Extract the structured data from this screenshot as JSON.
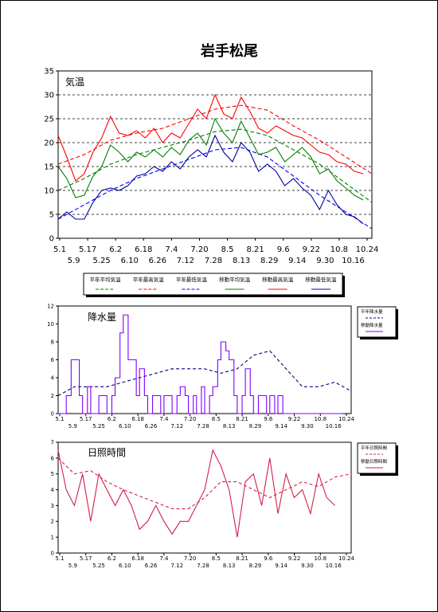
{
  "page_title": "岩手松尾",
  "colors": {
    "normal_mean": "#008000",
    "normal_max": "#ff0000",
    "normal_min": "#0000ff",
    "mov_mean": "#008000",
    "mov_max": "#ff0000",
    "mov_min": "#0000a0",
    "precip": "#8000ff",
    "precip_normal": "#000080",
    "sun": "#d0204a"
  },
  "chart_data": [
    {
      "type": "line",
      "title": "気温",
      "ylim": [
        0,
        35
      ],
      "yticks": [
        "0",
        "5",
        "10",
        "15",
        "20",
        "25",
        "30",
        "35"
      ],
      "xlabels_top": [
        "5.1",
        "5.17",
        "6.2",
        "6.18",
        "7.4",
        "7.20",
        "8.5",
        "8.21",
        "9.6",
        "9.22",
        "10.8",
        "10.24"
      ],
      "xlabels_bottom": [
        "5.9",
        "5.25",
        "6.10",
        "6.26",
        "7.12",
        "7.28",
        "8.13",
        "8.29",
        "9.14",
        "9.30",
        "10.16"
      ],
      "grid": "horizontal dashed",
      "legend_position": "below",
      "x_days": [
        0,
        180
      ],
      "series": [
        {
          "name": "平年平均気温",
          "style": "dashed",
          "color_key": "normal_mean",
          "x": [
            0,
            15,
            30,
            45,
            60,
            75,
            90,
            105,
            120,
            135,
            150,
            165,
            180
          ],
          "y": [
            10.0,
            12.5,
            15.5,
            17.5,
            19.0,
            20.5,
            22.3,
            22.8,
            21.5,
            18.5,
            15.5,
            11.5,
            7.5
          ]
        },
        {
          "name": "平年最高気温",
          "style": "dashed",
          "color_key": "normal_max",
          "x": [
            0,
            15,
            30,
            45,
            60,
            75,
            90,
            105,
            120,
            135,
            150,
            165,
            180
          ],
          "y": [
            15.5,
            17.5,
            20.5,
            22.0,
            23.0,
            25.0,
            27.0,
            27.8,
            26.8,
            23.5,
            20.5,
            17.0,
            13.5
          ]
        },
        {
          "name": "平年最低気温",
          "style": "dashed",
          "color_key": "normal_min",
          "x": [
            0,
            15,
            30,
            45,
            60,
            75,
            90,
            105,
            120,
            135,
            150,
            165,
            180
          ],
          "y": [
            4.0,
            7.0,
            10.0,
            12.5,
            14.5,
            16.5,
            18.5,
            19.0,
            17.0,
            13.0,
            9.0,
            5.5,
            2.0
          ]
        },
        {
          "name": "移動平均気温",
          "style": "solid",
          "color_key": "mov_mean",
          "x": [
            0,
            5,
            10,
            15,
            20,
            25,
            30,
            35,
            40,
            45,
            50,
            55,
            60,
            65,
            70,
            75,
            80,
            85,
            90,
            95,
            100,
            105,
            110,
            115,
            120,
            125,
            130,
            135,
            140,
            145,
            150,
            155,
            160,
            165,
            170,
            175
          ],
          "y": [
            15,
            12.5,
            8.5,
            9,
            13,
            15,
            19.5,
            18,
            16,
            18,
            17,
            18.5,
            17,
            19,
            17.5,
            20.5,
            22,
            19.5,
            25,
            22,
            20,
            24.5,
            21,
            17.5,
            18,
            19,
            16,
            17.5,
            19,
            17,
            13.5,
            14.5,
            12,
            10.5,
            9,
            8
          ]
        },
        {
          "name": "移動最高気温",
          "style": "solid",
          "color_key": "mov_max",
          "x": [
            0,
            5,
            10,
            15,
            20,
            25,
            30,
            35,
            40,
            45,
            50,
            55,
            60,
            65,
            70,
            75,
            80,
            85,
            90,
            95,
            100,
            105,
            110,
            115,
            120,
            125,
            130,
            135,
            140,
            145,
            150,
            155,
            160,
            165,
            170,
            175
          ],
          "y": [
            21.5,
            17,
            12,
            13.5,
            18,
            21,
            25.5,
            22,
            21.5,
            22.5,
            21,
            23,
            20,
            22,
            21,
            24,
            27,
            25,
            30,
            26,
            25,
            29.5,
            26.5,
            23,
            22,
            23.5,
            22.5,
            21.5,
            21,
            19.5,
            18,
            17.5,
            16,
            15.5,
            14,
            13.5
          ]
        },
        {
          "name": "移動最低気温",
          "style": "solid",
          "color_key": "mov_min",
          "x": [
            0,
            5,
            10,
            15,
            20,
            25,
            30,
            35,
            40,
            45,
            50,
            55,
            60,
            65,
            70,
            75,
            80,
            85,
            90,
            95,
            100,
            105,
            110,
            115,
            120,
            125,
            130,
            135,
            140,
            145,
            150,
            155,
            160,
            165,
            170,
            175
          ],
          "y": [
            4,
            5.5,
            4,
            4,
            7.5,
            10,
            10.5,
            10,
            11,
            13,
            13.5,
            15,
            14,
            16,
            14.5,
            17,
            18.5,
            17,
            21.5,
            18,
            16,
            20,
            18,
            14,
            15.5,
            14,
            11,
            12.5,
            10.5,
            9,
            6,
            10,
            7,
            5,
            4.5,
            3
          ]
        }
      ]
    },
    {
      "type": "line",
      "title": "降水量",
      "ylim": [
        0,
        12
      ],
      "yticks": [
        "0",
        "2",
        "4",
        "6",
        "8",
        "10",
        "12"
      ],
      "xlabels_top": [
        "5.1",
        "5.17",
        "6.2",
        "6.18",
        "7.4",
        "7.20",
        "8.5",
        "8.21",
        "9.6",
        "9.22",
        "10.8",
        "10.24"
      ],
      "xlabels_bottom": [
        "5.9",
        "5.25",
        "6.10",
        "6.26",
        "7.12",
        "7.28",
        "8.13",
        "8.29",
        "9.14",
        "9.30",
        "10.16"
      ],
      "legend_position": "right",
      "x_days": [
        0,
        180
      ],
      "series": [
        {
          "name": "平年降水量",
          "style": "dashed",
          "color_key": "precip_normal",
          "x": [
            0,
            10,
            20,
            30,
            40,
            50,
            60,
            70,
            80,
            90,
            100,
            110,
            120,
            130,
            140,
            150,
            160,
            170,
            180
          ],
          "y": [
            2,
            3,
            3,
            3,
            3.5,
            4,
            4.5,
            5,
            5,
            5,
            4.5,
            5,
            6.5,
            7,
            5,
            3,
            3,
            3.5,
            2.5
          ]
        },
        {
          "name": "移動降水量",
          "style": "solid",
          "color_key": "precip",
          "x": [
            0,
            5,
            8,
            10,
            13,
            15,
            18,
            20,
            23,
            25,
            28,
            30,
            33,
            35,
            38,
            40,
            43,
            45,
            48,
            50,
            53,
            55,
            58,
            60,
            63,
            65,
            68,
            70,
            73,
            75,
            78,
            80,
            83,
            85,
            88,
            90,
            93,
            95,
            98,
            100,
            103,
            105,
            108,
            110,
            113,
            115,
            118,
            120,
            123,
            125,
            128,
            130,
            133,
            135,
            138,
            140,
            145,
            150,
            155,
            160,
            165,
            170,
            175
          ],
          "y": [
            0,
            2,
            6,
            6,
            2,
            0,
            3,
            0,
            0,
            2,
            2,
            0,
            2,
            4,
            9,
            11,
            6,
            6,
            2,
            5,
            2,
            0,
            2,
            2,
            0,
            2,
            2,
            0,
            2,
            3,
            2,
            0,
            2,
            0,
            3,
            0,
            2,
            3,
            6,
            8,
            7,
            6,
            2,
            0,
            2,
            5,
            2,
            0,
            2,
            2,
            0,
            2,
            0,
            2,
            0,
            0,
            0,
            0,
            0,
            0,
            0,
            0,
            0
          ]
        }
      ]
    },
    {
      "type": "line",
      "title": "日照時間",
      "ylim": [
        0,
        7
      ],
      "yticks": [
        "0",
        "1",
        "2",
        "3",
        "4",
        "5",
        "6",
        "7"
      ],
      "xlabels_top": [
        "5.1",
        "5.17",
        "6.2",
        "6.18",
        "7.4",
        "7.20",
        "8.5",
        "8.21",
        "9.6",
        "9.22",
        "10.8",
        "10.24"
      ],
      "xlabels_bottom": [
        "5.9",
        "5.25",
        "6.10",
        "6.26",
        "7.12",
        "7.28",
        "8.13",
        "8.29",
        "9.14",
        "9.30",
        "10.16"
      ],
      "legend_position": "right",
      "x_days": [
        0,
        180
      ],
      "series": [
        {
          "name": "平年日照時間",
          "style": "dashed",
          "color_key": "sun",
          "x": [
            0,
            10,
            20,
            30,
            40,
            50,
            60,
            70,
            80,
            90,
            100,
            110,
            120,
            130,
            140,
            150,
            160,
            170,
            180
          ],
          "y": [
            6,
            5,
            5.2,
            4.5,
            4,
            3.6,
            3.2,
            2.8,
            2.8,
            3.5,
            4.5,
            4.5,
            4,
            3.5,
            4,
            4.5,
            4.2,
            4.8,
            5
          ]
        },
        {
          "name": "移動日照時間",
          "style": "solid",
          "color_key": "sun",
          "x": [
            0,
            5,
            10,
            15,
            20,
            25,
            30,
            35,
            40,
            45,
            50,
            55,
            60,
            65,
            70,
            75,
            80,
            85,
            90,
            95,
            100,
            105,
            110,
            115,
            120,
            125,
            130,
            135,
            140,
            145,
            150,
            155,
            160,
            165,
            170
          ],
          "y": [
            6.5,
            4,
            3,
            5,
            2,
            5,
            4,
            3,
            4,
            3,
            1.5,
            2,
            3,
            2,
            1.2,
            2,
            2,
            3,
            4,
            6.5,
            5.5,
            4,
            1,
            4.5,
            5,
            3,
            6,
            2.5,
            5,
            3.5,
            4,
            2.5,
            5,
            3.5,
            3
          ]
        }
      ]
    }
  ]
}
